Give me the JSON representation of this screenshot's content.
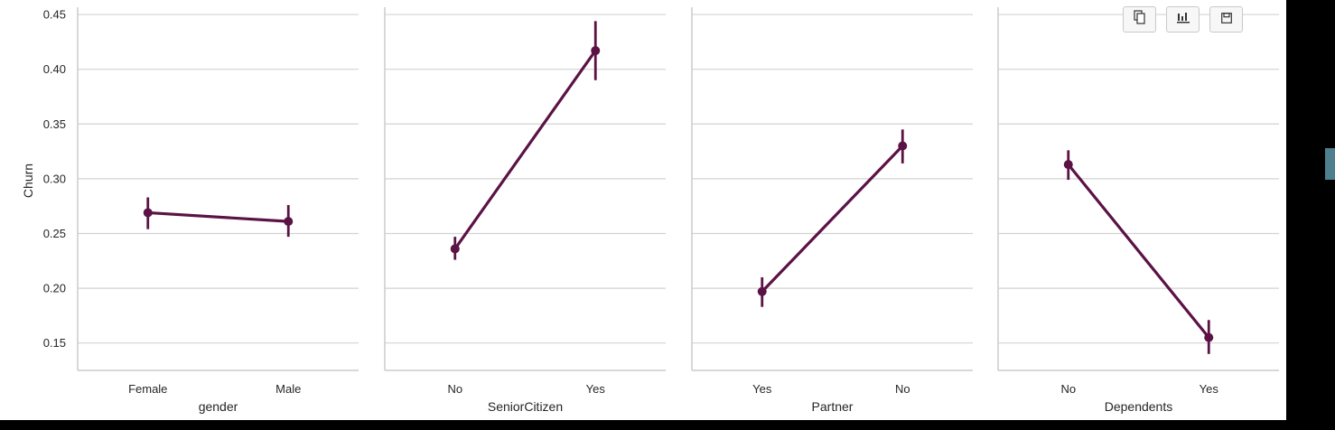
{
  "toolbar": {
    "buttons": [
      {
        "name": "copy-button",
        "icon": "copy-icon"
      },
      {
        "name": "chart-button",
        "icon": "bar-chart-icon"
      },
      {
        "name": "save-button",
        "icon": "save-icon"
      }
    ]
  },
  "chart_data": {
    "type": "point",
    "ylabel": "Churn",
    "ylim": [
      0.125,
      0.455
    ],
    "yticks": [
      "0.15",
      "0.20",
      "0.25",
      "0.30",
      "0.35",
      "0.40",
      "0.45"
    ],
    "grid": "horizontal",
    "color": "#5b1245",
    "panels": [
      {
        "xlabel": "gender",
        "categories": [
          "Female",
          "Male"
        ],
        "values": [
          0.269,
          0.261
        ],
        "ci_low": [
          0.254,
          0.247
        ],
        "ci_high": [
          0.283,
          0.276
        ]
      },
      {
        "xlabel": "SeniorCitizen",
        "categories": [
          "No",
          "Yes"
        ],
        "values": [
          0.236,
          0.417
        ],
        "ci_low": [
          0.226,
          0.39
        ],
        "ci_high": [
          0.247,
          0.444
        ]
      },
      {
        "xlabel": "Partner",
        "categories": [
          "Yes",
          "No"
        ],
        "values": [
          0.197,
          0.33
        ],
        "ci_low": [
          0.183,
          0.314
        ],
        "ci_high": [
          0.21,
          0.345
        ]
      },
      {
        "xlabel": "Dependents",
        "categories": [
          "No",
          "Yes"
        ],
        "values": [
          0.313,
          0.155
        ],
        "ci_low": [
          0.299,
          0.14
        ],
        "ci_high": [
          0.326,
          0.171
        ]
      }
    ]
  }
}
